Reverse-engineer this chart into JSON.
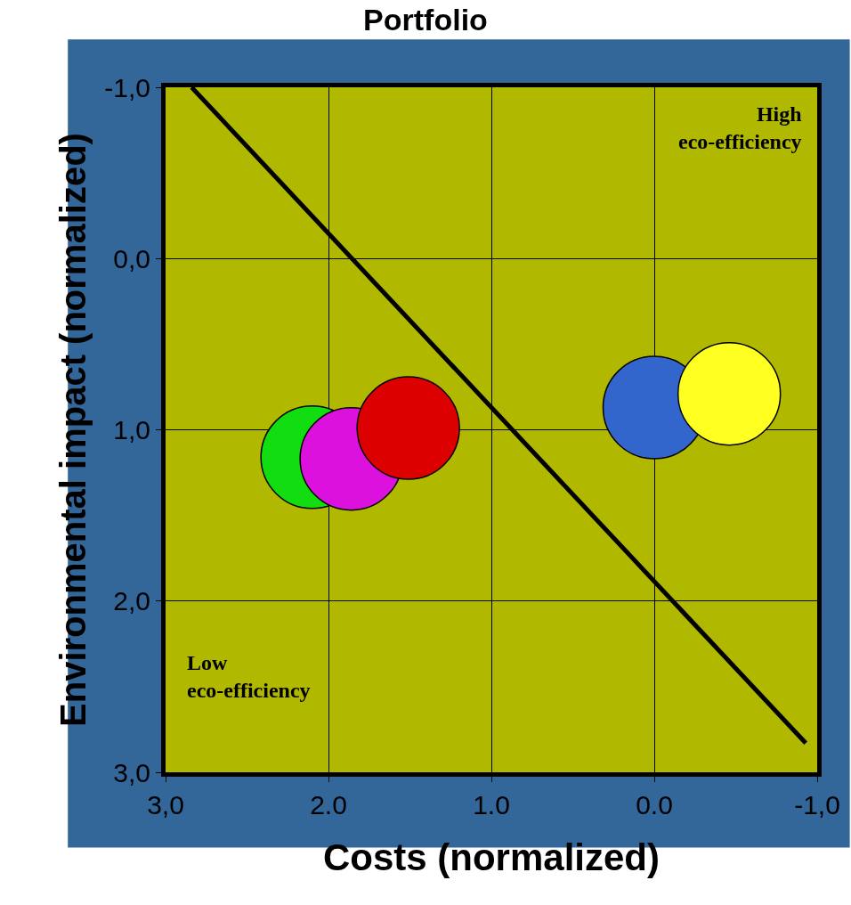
{
  "chart_data": {
    "type": "bubble",
    "title": "Portfolio",
    "xlabel": "Costs (normalized)",
    "ylabel": "Environmental impact (normalized)",
    "x": [
      2.1,
      1.86,
      1.51,
      0.0,
      -0.46
    ],
    "values": [
      1.16,
      1.17,
      0.99,
      0.87,
      0.79
    ],
    "sizes": [
      1,
      1,
      1,
      1,
      1
    ],
    "colors": [
      "#11dd11",
      "#dd11dd",
      "#dd0000",
      "#3366cc",
      "#ffff22"
    ],
    "series": [
      {
        "type": "line",
        "color": "#000000",
        "x": [
          2.84,
          -0.93
        ],
        "values": [
          -1.0,
          2.83
        ]
      }
    ],
    "xlim": [
      3.0,
      -1.0
    ],
    "ylim": [
      3.0,
      -1.0
    ],
    "xticks": [
      {
        "value": 3.0,
        "label": "3,0"
      },
      {
        "value": 2.0,
        "label": "2.0"
      },
      {
        "value": 1.0,
        "label": "1.0"
      },
      {
        "value": 0.0,
        "label": "0.0"
      },
      {
        "value": -1.0,
        "label": "-1,0"
      }
    ],
    "yticks": [
      {
        "value": -1.0,
        "label": "-1,0"
      },
      {
        "value": 0.0,
        "label": "0,0"
      },
      {
        "value": 1.0,
        "label": "1,0"
      },
      {
        "value": 2.0,
        "label": "2,0"
      },
      {
        "value": 3.0,
        "label": "3,0"
      }
    ],
    "annotations": [
      "High\neco-efficiency",
      "Low\neco-efficiency"
    ],
    "grid": true
  }
}
